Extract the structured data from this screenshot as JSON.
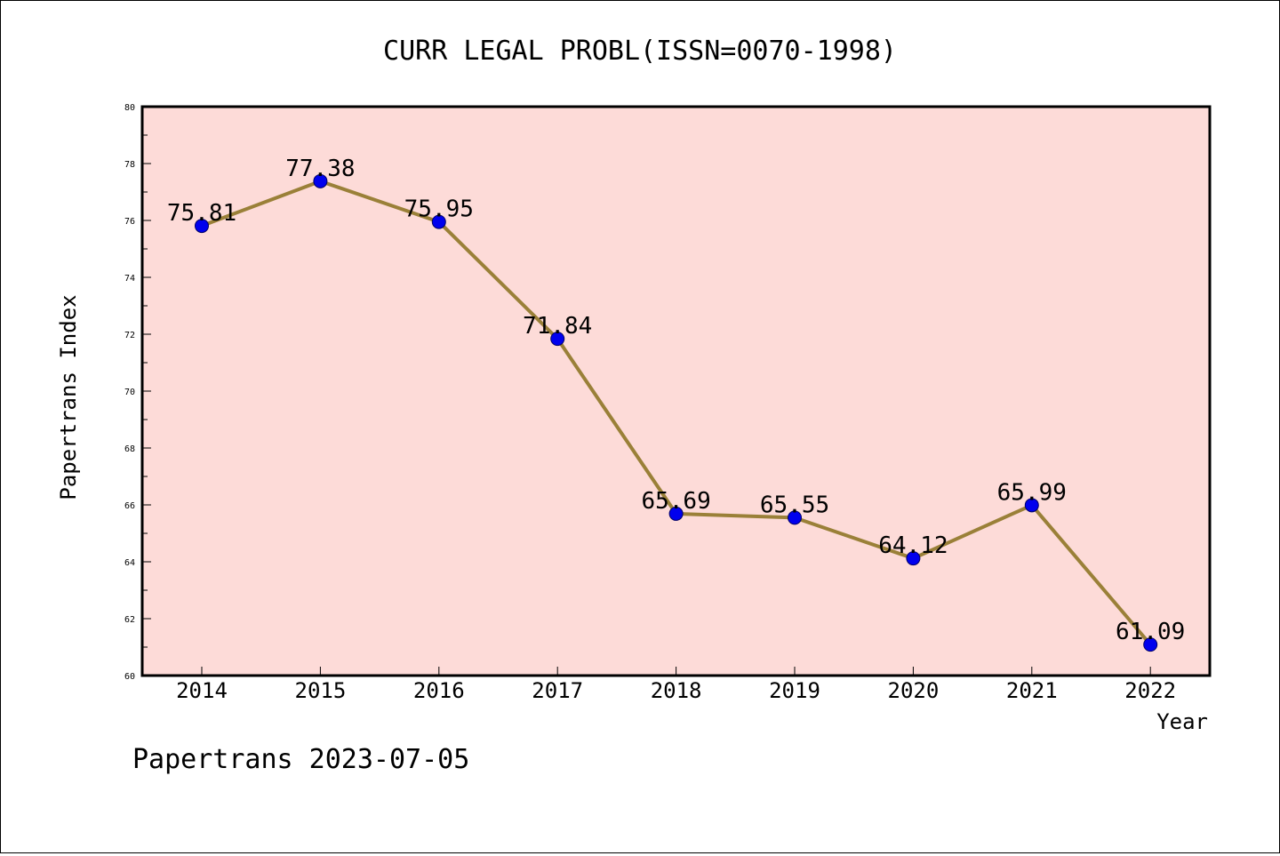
{
  "chart_data": {
    "type": "line",
    "title": "CURR LEGAL PROBL(ISSN=0070-1998)",
    "xlabel": "Year",
    "ylabel": "Papertrans Index",
    "categories": [
      "2014",
      "2015",
      "2016",
      "2017",
      "2018",
      "2019",
      "2020",
      "2021",
      "2022"
    ],
    "series": [
      {
        "values": [
          75.81,
          77.38,
          75.95,
          71.84,
          65.69,
          65.55,
          64.12,
          65.99,
          61.09
        ],
        "data_labels": [
          "75.81",
          "77.38",
          "75.95",
          "71.84",
          "65.69",
          "65.55",
          "64.12",
          "65.99",
          "61.09"
        ]
      }
    ],
    "ylim": [
      60,
      80
    ],
    "yticks": [
      "60",
      "62",
      "64",
      "66",
      "68",
      "70",
      "72",
      "74",
      "76",
      "78",
      "80"
    ],
    "grid": false,
    "colors": {
      "plot_background": "#fddbd8",
      "line": "#9a8038",
      "marker": "#0000ee"
    }
  },
  "footer": {
    "text": "Papertrans 2023-07-05"
  }
}
